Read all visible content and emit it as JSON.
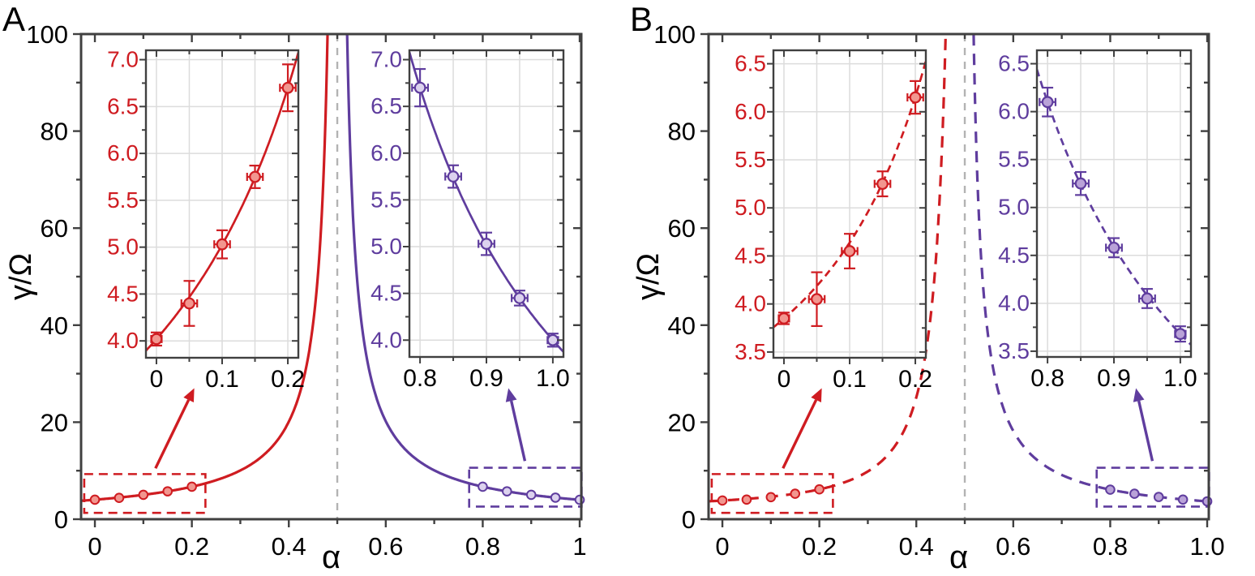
{
  "figure": {
    "background": "#ffffff"
  },
  "chart_data": {
    "type": "line",
    "colors": {
      "red": "#cf1c21",
      "red_fill": "#f2968f",
      "purple": "#5f3d9e",
      "purple_fill": "#b9a2d8",
      "purple_fill_light": "#dcd2ee",
      "axis": "#404040",
      "grid": "#dcdcdc",
      "vline": "#b3b3b3",
      "text": "#000000"
    },
    "panels": [
      {
        "panel_label": "A",
        "xlabel": "α",
        "ylabel": "γ/Ω",
        "style": "solid",
        "xlim": [
          -0.0285,
          1.0033
        ],
        "ylim": [
          0,
          100
        ],
        "xticks": {
          "values": [
            0,
            0.2,
            0.4,
            0.6,
            0.8,
            1.0
          ],
          "labels": [
            "0",
            "0.2",
            "0.4",
            "0.6",
            "0.8",
            "1"
          ]
        },
        "xminor": [
          0.1,
          0.3,
          0.5,
          0.7,
          0.9
        ],
        "yticks": {
          "values": [
            0,
            20,
            40,
            60,
            80,
            100
          ],
          "labels": [
            "0",
            "20",
            "40",
            "60",
            "80",
            "100"
          ]
        },
        "yminor": [
          10,
          30,
          50,
          70,
          90
        ],
        "vline_x": 0.5,
        "series": [
          {
            "name": "red-branch",
            "color": "red",
            "marker_fill": "red_fill",
            "side": "left",
            "curve": {
              "pole": 0.5,
              "power": 1,
              "b": 2.01,
              "c": 0.0
            },
            "x": [
              0,
              0.05,
              0.1,
              0.15,
              0.2
            ],
            "y": [
              4.02,
              4.4,
              5.03,
              5.75,
              6.7
            ]
          },
          {
            "name": "purple-branch",
            "color": "purple",
            "marker_fill": "purple_fill_light",
            "side": "right",
            "curve": {
              "pole": 0.5,
              "power": 1,
              "b": 2.025,
              "c": -0.05
            },
            "x": [
              0.8,
              0.85,
              0.9,
              0.95,
              1.0
            ],
            "y": [
              6.7,
              5.75,
              5.03,
              4.45,
              4.0
            ]
          }
        ],
        "insets": [
          {
            "series": 0,
            "xlim": [
              -0.016,
              0.216
            ],
            "ylim": [
              3.82,
              7.1
            ],
            "xticks": {
              "values": [
                0,
                0.1,
                0.2
              ],
              "labels": [
                "0",
                "0.1",
                "0.2"
              ]
            },
            "xminor": [
              0.05,
              0.15
            ],
            "yticks": {
              "values": [
                4.0,
                4.5,
                5.0,
                5.5,
                6.0,
                6.5,
                7.0
              ],
              "labels": [
                "4.0",
                "4.5",
                "5.0",
                "5.5",
                "6.0",
                "6.5",
                "7.0"
              ]
            },
            "yminor": [
              4.25,
              4.75,
              5.25,
              5.75,
              6.25,
              6.75
            ],
            "yerr": [
              0.07,
              0.24,
              0.15,
              0.12,
              0.25
            ],
            "xerr": [
              0.008,
              0.012,
              0.012,
              0.012,
              0.012
            ]
          },
          {
            "series": 1,
            "xlim": [
              0.784,
              1.016
            ],
            "ylim": [
              3.82,
              7.1
            ],
            "xticks": {
              "values": [
                0.8,
                0.9,
                1.0
              ],
              "labels": [
                "0.8",
                "0.9",
                "1.0"
              ]
            },
            "xminor": [
              0.85,
              0.95
            ],
            "yticks": {
              "values": [
                4.0,
                4.5,
                5.0,
                5.5,
                6.0,
                6.5,
                7.0
              ],
              "labels": [
                "4.0",
                "4.5",
                "5.0",
                "5.5",
                "6.0",
                "6.5",
                "7.0"
              ]
            },
            "yminor": [
              4.25,
              4.75,
              5.25,
              5.75,
              6.25,
              6.75
            ],
            "yerr": [
              0.2,
              0.12,
              0.12,
              0.08,
              0.07
            ],
            "xerr": [
              0.012,
              0.012,
              0.012,
              0.012,
              0.008
            ]
          }
        ],
        "annotations": {
          "boxes": [
            {
              "color": "red",
              "x": [
                -0.022,
                0.228
              ],
              "y": [
                1.3,
                9.3
              ]
            },
            {
              "color": "purple",
              "x": [
                0.772,
                1.004
              ],
              "y": [
                2.6,
                10.6
              ]
            }
          ],
          "arrows": [
            {
              "color": "red",
              "from": [
                0.125,
                10.5
              ],
              "to": [
                0.205,
                27
              ]
            },
            {
              "color": "purple",
              "from": [
                0.887,
                12.0
              ],
              "to": [
                0.853,
                27
              ]
            }
          ]
        }
      },
      {
        "panel_label": "B",
        "xlabel": "α",
        "ylabel": "γ/Ω",
        "style": "dashed",
        "xlim": [
          -0.0285,
          1.0033
        ],
        "ylim": [
          0,
          100
        ],
        "xticks": {
          "values": [
            0,
            0.2,
            0.4,
            0.6,
            0.8,
            1.0
          ],
          "labels": [
            "0",
            "0.2",
            "0.4",
            "0.6",
            "0.8",
            "1.0"
          ]
        },
        "xminor": [
          0.1,
          0.3,
          0.5,
          0.7,
          0.9
        ],
        "yticks": {
          "values": [
            0,
            20,
            40,
            60,
            80,
            100
          ],
          "labels": [
            "0",
            "20",
            "40",
            "60",
            "80",
            "100"
          ]
        },
        "yminor": [
          10,
          30,
          50,
          70,
          90
        ],
        "vline_x": 0.5,
        "series": [
          {
            "name": "red-branch",
            "color": "red",
            "marker_fill": "red_fill",
            "side": "left",
            "curve": {
              "pole": 0.5,
              "power": 1.55,
              "b": 0.653,
              "c": 1.936
            },
            "x": [
              0,
              0.05,
              0.1,
              0.15,
              0.2
            ],
            "y": [
              3.85,
              4.05,
              4.55,
              5.25,
              6.15
            ]
          },
          {
            "name": "purple-branch",
            "color": "purple",
            "marker_fill": "purple_fill",
            "side": "right",
            "curve": {
              "pole": 0.5,
              "power": 1,
              "b": 1.815,
              "c": 0.05
            },
            "x": [
              0.8,
              0.85,
              0.9,
              0.95,
              1.0
            ],
            "y": [
              6.1,
              5.25,
              4.58,
              4.05,
              3.68
            ]
          }
        ],
        "insets": [
          {
            "series": 0,
            "xlim": [
              -0.016,
              0.216
            ],
            "ylim": [
              3.44,
              6.64
            ],
            "xticks": {
              "values": [
                0,
                0.1,
                0.2
              ],
              "labels": [
                "0",
                "0.1",
                "0.2"
              ]
            },
            "xminor": [
              0.05,
              0.15
            ],
            "yticks": {
              "values": [
                3.5,
                4.0,
                4.5,
                5.0,
                5.5,
                6.0,
                6.5
              ],
              "labels": [
                "3.5",
                "4.0",
                "4.5",
                "5.0",
                "5.5",
                "6.0",
                "6.5"
              ]
            },
            "yminor": [
              3.75,
              4.25,
              4.75,
              5.25,
              5.75,
              6.25
            ],
            "yerr": [
              0.06,
              0.28,
              0.18,
              0.13,
              0.17
            ],
            "xerr": [
              0.008,
              0.012,
              0.012,
              0.012,
              0.012
            ]
          },
          {
            "series": 1,
            "xlim": [
              0.784,
              1.016
            ],
            "ylim": [
              3.44,
              6.64
            ],
            "xticks": {
              "values": [
                0.8,
                0.9,
                1.0
              ],
              "labels": [
                "0.8",
                "0.9",
                "1.0"
              ]
            },
            "xminor": [
              0.85,
              0.95
            ],
            "yticks": {
              "values": [
                3.5,
                4.0,
                4.5,
                5.0,
                5.5,
                6.0,
                6.5
              ],
              "labels": [
                "3.5",
                "4.0",
                "4.5",
                "5.0",
                "5.5",
                "6.0",
                "6.5"
              ]
            },
            "yminor": [
              3.75,
              4.25,
              4.75,
              5.25,
              5.75,
              6.25
            ],
            "yerr": [
              0.15,
              0.12,
              0.1,
              0.1,
              0.08
            ],
            "xerr": [
              0.012,
              0.012,
              0.012,
              0.012,
              0.008
            ]
          }
        ],
        "annotations": {
          "boxes": [
            {
              "color": "red",
              "x": [
                -0.022,
                0.228
              ],
              "y": [
                1.3,
                9.3
              ]
            },
            {
              "color": "purple",
              "x": [
                0.772,
                1.004
              ],
              "y": [
                2.6,
                10.6
              ]
            }
          ],
          "arrows": [
            {
              "color": "red",
              "from": [
                0.125,
                10.5
              ],
              "to": [
                0.205,
                27
              ]
            },
            {
              "color": "purple",
              "from": [
                0.887,
                12.0
              ],
              "to": [
                0.853,
                27
              ]
            }
          ]
        }
      }
    ]
  }
}
